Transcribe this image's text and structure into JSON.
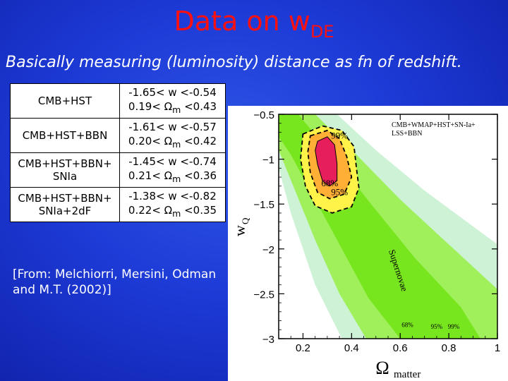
{
  "title": {
    "main": "Data on w",
    "subscript": "DE"
  },
  "subtitle": "Basically measuring (luminosity) distance as fn of redshift.",
  "table": {
    "rows": [
      {
        "label": "CMB+HST",
        "w_range": "-1.65< w <-0.54",
        "omega_prefix": "0.19< ",
        "omega_symbol": "Ω",
        "omega_sub": "m",
        "omega_suffix": " <0.43"
      },
      {
        "label": "CMB+HST+BBN",
        "w_range": "-1.61< w <-0.57",
        "omega_prefix": "0.20< ",
        "omega_symbol": "Ω",
        "omega_sub": "m",
        "omega_suffix": " <0.42"
      },
      {
        "label": "CMB+HST+BBN+ SNIa",
        "w_range": "-1.45< w <-0.74",
        "omega_prefix": "0.21< ",
        "omega_symbol": "Ω",
        "omega_sub": "m",
        "omega_suffix": " <0.36"
      },
      {
        "label": "CMB+HST+BBN+ SNIa+2dF",
        "w_range": "-1.38< w <-0.82",
        "omega_prefix": "0.22< ",
        "omega_symbol": "Ω",
        "omega_sub": "m",
        "omega_suffix": " <0.35"
      }
    ]
  },
  "source_note": "[From: Melchiorri, Mersini, Odman and M.T. (2002)]",
  "chart_data": {
    "type": "contour",
    "xlabel_symbol": "Ω",
    "xlabel_sub": "matter",
    "ylabel_symbol": "w",
    "ylabel_sub": "Q",
    "xlim": [
      0.1,
      1.0
    ],
    "ylim": [
      -3.0,
      -0.5
    ],
    "xticks": [
      0.2,
      0.4,
      0.6,
      0.8,
      1
    ],
    "yticks": [
      -0.5,
      -1,
      -1.5,
      -2,
      -2.5,
      -3
    ],
    "legend_lines": [
      "CMB+WMAP+HST+SN-Ia+",
      "LSS+BBN"
    ],
    "annotations": [
      {
        "text": "99%",
        "x": 0.35,
        "y": -0.77
      },
      {
        "text": "68%",
        "x": 0.31,
        "y": -1.3
      },
      {
        "text": "95%",
        "x": 0.35,
        "y": -1.4
      },
      {
        "text": "Supernovae",
        "x": 0.58,
        "y": -2.25
      },
      {
        "text": "68%",
        "x": 0.63,
        "y": -2.87
      },
      {
        "text": "95%",
        "x": 0.75,
        "y": -2.89
      },
      {
        "text": "99%",
        "x": 0.82,
        "y": -2.89
      }
    ],
    "contours": {
      "sn_99": [
        [
          0.1,
          -0.5
        ],
        [
          0.34,
          -0.5
        ],
        [
          0.5,
          -0.9
        ],
        [
          0.7,
          -1.35
        ],
        [
          0.9,
          -1.75
        ],
        [
          1.0,
          -1.95
        ],
        [
          1.0,
          -3.0
        ],
        [
          0.36,
          -3.0
        ],
        [
          0.25,
          -2.4
        ],
        [
          0.15,
          -1.6
        ],
        [
          0.1,
          -1.1
        ]
      ],
      "sn_95": [
        [
          0.1,
          -0.5
        ],
        [
          0.25,
          -0.5
        ],
        [
          0.42,
          -0.95
        ],
        [
          0.6,
          -1.45
        ],
        [
          0.82,
          -2.0
        ],
        [
          1.0,
          -2.45
        ],
        [
          1.0,
          -3.0
        ],
        [
          0.46,
          -3.0
        ],
        [
          0.35,
          -2.5
        ],
        [
          0.25,
          -1.9
        ],
        [
          0.16,
          -1.3
        ],
        [
          0.1,
          -0.9
        ]
      ],
      "sn_68": [
        [
          0.1,
          -0.5
        ],
        [
          0.18,
          -0.5
        ],
        [
          0.32,
          -0.95
        ],
        [
          0.48,
          -1.5
        ],
        [
          0.66,
          -2.1
        ],
        [
          0.85,
          -2.65
        ],
        [
          0.93,
          -3.0
        ],
        [
          0.6,
          -3.0
        ],
        [
          0.47,
          -2.55
        ],
        [
          0.36,
          -2.0
        ],
        [
          0.25,
          -1.45
        ],
        [
          0.15,
          -0.95
        ],
        [
          0.1,
          -0.75
        ]
      ],
      "combined_99": [
        [
          0.2,
          -0.72
        ],
        [
          0.28,
          -0.63
        ],
        [
          0.36,
          -0.68
        ],
        [
          0.41,
          -0.86
        ],
        [
          0.42,
          -1.1
        ],
        [
          0.43,
          -1.32
        ],
        [
          0.4,
          -1.53
        ],
        [
          0.32,
          -1.6
        ],
        [
          0.25,
          -1.52
        ],
        [
          0.21,
          -1.3
        ],
        [
          0.19,
          -1.0
        ]
      ],
      "combined_95": [
        [
          0.23,
          -0.74
        ],
        [
          0.3,
          -0.68
        ],
        [
          0.35,
          -0.77
        ],
        [
          0.38,
          -0.97
        ],
        [
          0.4,
          -1.2
        ],
        [
          0.37,
          -1.39
        ],
        [
          0.31,
          -1.44
        ],
        [
          0.26,
          -1.37
        ],
        [
          0.23,
          -1.15
        ],
        [
          0.22,
          -0.92
        ]
      ],
      "combined_68": [
        [
          0.26,
          -0.8
        ],
        [
          0.3,
          -0.75
        ],
        [
          0.33,
          -0.84
        ],
        [
          0.34,
          -1.05
        ],
        [
          0.34,
          -1.24
        ],
        [
          0.31,
          -1.3
        ],
        [
          0.28,
          -1.24
        ],
        [
          0.26,
          -1.06
        ],
        [
          0.25,
          -0.9
        ]
      ]
    },
    "colors": {
      "sn_99": "#cdf2d6",
      "sn_95": "#9ff05a",
      "sn_68": "#78e61e",
      "combined_99": "#fff34a",
      "combined_95": "#ffae36",
      "combined_68": "#e61f5c",
      "line": "#000000"
    }
  }
}
